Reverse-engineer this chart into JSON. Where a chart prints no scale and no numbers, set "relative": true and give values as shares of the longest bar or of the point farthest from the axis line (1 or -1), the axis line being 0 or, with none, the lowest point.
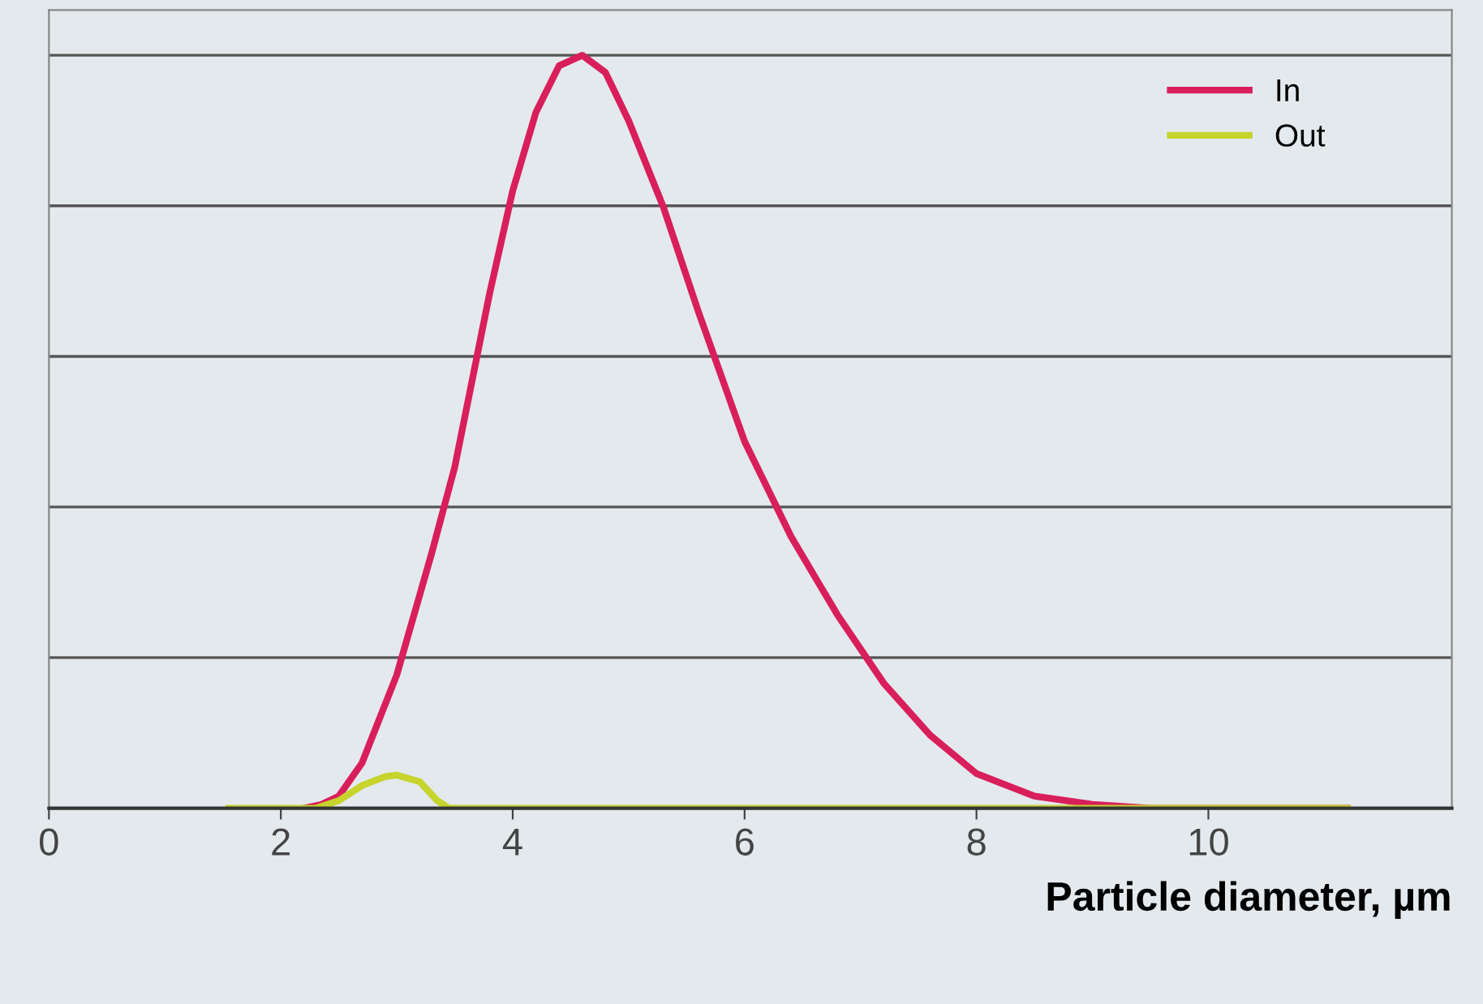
{
  "chart_data": {
    "type": "line",
    "relative": true,
    "xlabel": "Particle diameter, µm",
    "xlim": [
      0,
      12.1
    ],
    "xticks": [
      0,
      2,
      4,
      6,
      8,
      10
    ],
    "grid": "y",
    "legend": "top right",
    "marker": "none",
    "line_style": "solid",
    "series": [
      {
        "name": "In",
        "color": "#d81f5c",
        "x": [
          2.2,
          2.35,
          2.5,
          2.7,
          3.0,
          3.3,
          3.5,
          3.8,
          4.0,
          4.2,
          4.4,
          4.6,
          4.8,
          5.0,
          5.3,
          5.6,
          6.0,
          6.4,
          6.8,
          7.2,
          7.6,
          8.0,
          8.5,
          9.0,
          9.5,
          11.2
        ],
        "values": [
          0,
          0.005,
          0.016,
          0.06,
          0.177,
          0.338,
          0.453,
          0.683,
          0.82,
          0.924,
          0.986,
          1.0,
          0.977,
          0.913,
          0.798,
          0.66,
          0.487,
          0.361,
          0.257,
          0.166,
          0.097,
          0.046,
          0.016,
          0.005,
          0,
          0
        ]
      },
      {
        "name": "Out",
        "color": "#c6d42c",
        "x": [
          1.55,
          2.3,
          2.5,
          2.7,
          2.9,
          3.0,
          3.2,
          3.35,
          3.45,
          11.2
        ],
        "values": [
          0,
          0,
          0.01,
          0.03,
          0.042,
          0.044,
          0.035,
          0.01,
          0,
          0
        ]
      }
    ]
  }
}
